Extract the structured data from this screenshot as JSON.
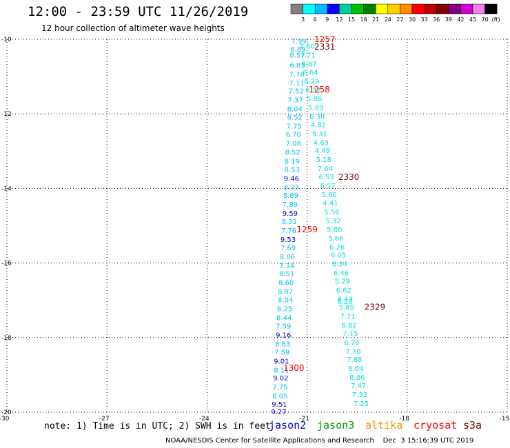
{
  "header": {
    "title": "12:00 - 23:59 UTC 11/26/2019",
    "subtitle": "12 hour collection of altimeter wave heights"
  },
  "colorbar": {
    "unit": "(ft)",
    "labels": [
      "3",
      "6",
      "9",
      "12",
      "15",
      "18",
      "21",
      "24",
      "27",
      "30",
      "33",
      "36",
      "39",
      "42",
      "45",
      "70"
    ],
    "colors": [
      "#808080",
      "#00ffff",
      "#00bfff",
      "#0000ff",
      "#00d0a0",
      "#00c000",
      "#008000",
      "#ffff00",
      "#ffd000",
      "#ff8c00",
      "#ff0000",
      "#c00000",
      "#800000",
      "#800080",
      "#d000d0",
      "#ee82ee",
      "#000000"
    ]
  },
  "footer": {
    "note": "note: 1) Time is in UTC; 2) SWH is in feet",
    "credit": "NOAA/NESDIS Center for Satellite Applications and Research    Dec  3 15:16:39 UTC 2019"
  },
  "legend": [
    {
      "name": "jason2",
      "color": "#0000cc"
    },
    {
      "name": "jason3",
      "color": "#009900"
    },
    {
      "name": "altika",
      "color": "#ff8c00"
    },
    {
      "name": "cryosat",
      "color": "#ff0000"
    },
    {
      "name": "s3a",
      "color": "#800000"
    }
  ],
  "chart_data": {
    "type": "scatter",
    "xlabel": "",
    "ylabel": "",
    "xlim": [
      -30,
      -15
    ],
    "ylim": [
      -20,
      -10
    ],
    "xticks": [
      -30,
      -27,
      -24,
      -21,
      -18,
      -15
    ],
    "yticks": [
      -10,
      -12,
      -14,
      -16,
      -18,
      -20
    ],
    "grid": true,
    "series": [
      {
        "name": "jason2",
        "color": "#00bfff",
        "points": [
          {
            "x": -21.25,
            "y": -10.04,
            "label": "7.99"
          },
          {
            "x": -21.27,
            "y": -10.26,
            "label": "8.89"
          },
          {
            "x": -21.29,
            "y": -10.42,
            "label": "8.57"
          },
          {
            "x": -21.29,
            "y": -10.68,
            "label": "6.83"
          },
          {
            "x": -21.31,
            "y": -10.92,
            "label": "7.76"
          },
          {
            "x": -21.31,
            "y": -11.16,
            "label": "7.11"
          },
          {
            "x": -21.33,
            "y": -11.38,
            "label": "7.52"
          },
          {
            "x": -21.35,
            "y": -11.62,
            "label": "7.37"
          },
          {
            "x": -21.37,
            "y": -11.86,
            "label": "8.04"
          },
          {
            "x": -21.37,
            "y": -12.08,
            "label": "8.52"
          },
          {
            "x": -21.39,
            "y": -12.32,
            "label": "7.75"
          },
          {
            "x": -21.41,
            "y": -12.54,
            "label": "6.70"
          },
          {
            "x": -21.41,
            "y": -12.78,
            "label": "7.08"
          },
          {
            "x": -21.43,
            "y": -13.02,
            "label": "8.52"
          },
          {
            "x": -21.45,
            "y": -13.26,
            "label": "8.19"
          },
          {
            "x": -21.45,
            "y": -13.48,
            "label": "8.53"
          },
          {
            "x": -21.47,
            "y": -13.72,
            "label": "9.46",
            "color": "#0000cc"
          },
          {
            "x": -21.47,
            "y": -13.96,
            "label": "8.73"
          },
          {
            "x": -21.49,
            "y": -14.18,
            "label": "8.89"
          },
          {
            "x": -21.51,
            "y": -14.42,
            "label": "7.89"
          },
          {
            "x": -21.51,
            "y": -14.66,
            "label": "9.59",
            "color": "#0000cc"
          },
          {
            "x": -21.53,
            "y": -14.88,
            "label": "8.31"
          },
          {
            "x": -21.55,
            "y": -15.12,
            "label": "7.76"
          },
          {
            "x": -21.57,
            "y": -15.36,
            "label": "9.53",
            "color": "#0000cc"
          },
          {
            "x": -21.57,
            "y": -15.58,
            "label": "7.69"
          },
          {
            "x": -21.59,
            "y": -15.82,
            "label": "8.00"
          },
          {
            "x": -21.61,
            "y": -16.06,
            "label": "7.34"
          },
          {
            "x": -21.61,
            "y": -16.28,
            "label": "8.51"
          },
          {
            "x": -21.63,
            "y": -16.52,
            "label": "8.60"
          },
          {
            "x": -21.65,
            "y": -16.76,
            "label": "8.97"
          },
          {
            "x": -21.65,
            "y": -16.98,
            "label": "8.04"
          },
          {
            "x": -21.67,
            "y": -17.22,
            "label": "8.25"
          },
          {
            "x": -21.69,
            "y": -17.46,
            "label": "8.44"
          },
          {
            "x": -21.71,
            "y": -17.68,
            "label": "7.59"
          },
          {
            "x": -21.71,
            "y": -17.92,
            "label": "9.16",
            "color": "#0000cc"
          },
          {
            "x": -21.73,
            "y": -18.16,
            "label": "8.83"
          },
          {
            "x": -21.75,
            "y": -18.38,
            "label": "7.59"
          },
          {
            "x": -21.77,
            "y": -18.62,
            "label": "9.01",
            "color": "#0000cc"
          },
          {
            "x": -21.77,
            "y": -18.86,
            "label": "8.11"
          },
          {
            "x": -21.79,
            "y": -19.08,
            "label": "9.02",
            "color": "#0000cc"
          },
          {
            "x": -21.81,
            "y": -19.32,
            "label": "7.75"
          },
          {
            "x": -21.81,
            "y": -19.56,
            "label": "8.05"
          },
          {
            "x": -21.83,
            "y": -19.78,
            "label": "9.51",
            "color": "#0000cc"
          },
          {
            "x": -21.85,
            "y": -19.98,
            "label": "9.27",
            "color": "#0000cc"
          }
        ]
      },
      {
        "name": "jason3",
        "color": "#00dddd",
        "points": [
          {
            "x": -21.0,
            "y": -10.18,
            "label": "7.60"
          },
          {
            "x": -20.98,
            "y": -10.42,
            "label": "7.71"
          },
          {
            "x": -20.94,
            "y": -10.66,
            "label": "6.87"
          },
          {
            "x": -20.9,
            "y": -10.88,
            "label": "6.64"
          },
          {
            "x": -20.86,
            "y": -11.12,
            "label": "6.29"
          },
          {
            "x": -20.82,
            "y": -11.36,
            "label": "6.32"
          },
          {
            "x": -20.78,
            "y": -11.58,
            "label": "5.86"
          },
          {
            "x": -20.74,
            "y": -11.82,
            "label": "5.89"
          },
          {
            "x": -20.7,
            "y": -12.06,
            "label": "6.38"
          },
          {
            "x": -20.66,
            "y": -12.28,
            "label": "4.82"
          },
          {
            "x": -20.62,
            "y": -12.52,
            "label": "5.31"
          },
          {
            "x": -20.58,
            "y": -12.76,
            "label": "4.63"
          },
          {
            "x": -20.54,
            "y": -12.98,
            "label": "4.49"
          },
          {
            "x": -20.5,
            "y": -13.22,
            "label": "5.18"
          },
          {
            "x": -20.46,
            "y": -13.46,
            "label": "7.64"
          },
          {
            "x": -20.42,
            "y": -13.68,
            "label": "6.53"
          },
          {
            "x": -20.38,
            "y": -13.92,
            "label": "6.17"
          },
          {
            "x": -20.34,
            "y": -14.16,
            "label": "5.60"
          },
          {
            "x": -20.3,
            "y": -14.38,
            "label": "4.41"
          },
          {
            "x": -20.26,
            "y": -14.62,
            "label": "5.56"
          },
          {
            "x": -20.22,
            "y": -14.86,
            "label": "5.32"
          },
          {
            "x": -20.18,
            "y": -15.08,
            "label": "5.86"
          },
          {
            "x": -20.14,
            "y": -15.32,
            "label": "5.66"
          },
          {
            "x": -20.1,
            "y": -15.56,
            "label": "6.26"
          },
          {
            "x": -20.06,
            "y": -15.78,
            "label": "6.05"
          },
          {
            "x": -20.02,
            "y": -16.02,
            "label": "6.34"
          },
          {
            "x": -19.98,
            "y": -16.26,
            "label": "6.46"
          },
          {
            "x": -19.94,
            "y": -16.48,
            "label": "5.29"
          },
          {
            "x": -19.9,
            "y": -16.72,
            "label": "6.62"
          },
          {
            "x": -19.86,
            "y": -16.96,
            "label": "6.43"
          },
          {
            "x": -19.86,
            "y": -17.02,
            "label": "6.20"
          },
          {
            "x": -19.82,
            "y": -17.18,
            "label": "5.85"
          },
          {
            "x": -19.78,
            "y": -17.42,
            "label": "7.71"
          },
          {
            "x": -19.74,
            "y": -17.66,
            "label": "6.82"
          },
          {
            "x": -19.7,
            "y": -17.88,
            "label": "7.15"
          },
          {
            "x": -19.66,
            "y": -18.12,
            "label": "6.70"
          },
          {
            "x": -19.62,
            "y": -18.36,
            "label": "7.70"
          },
          {
            "x": -19.58,
            "y": -18.58,
            "label": "7.88"
          },
          {
            "x": -19.54,
            "y": -18.82,
            "label": "8.64"
          },
          {
            "x": -19.5,
            "y": -19.06,
            "label": "8.86"
          },
          {
            "x": -19.46,
            "y": -19.28,
            "label": "7.47"
          },
          {
            "x": -19.42,
            "y": -19.52,
            "label": "7.33"
          },
          {
            "x": -19.38,
            "y": -19.76,
            "label": "7.25"
          }
        ]
      },
      {
        "name": "time-labels",
        "points": [
          {
            "x": -20.47,
            "y": -10.0,
            "label": "1257",
            "color": "#ff0000"
          },
          {
            "x": -20.47,
            "y": -10.2,
            "label": "2331",
            "color": "#800000"
          },
          {
            "x": -20.63,
            "y": -11.35,
            "label": "1258",
            "color": "#ff0000"
          },
          {
            "x": -19.75,
            "y": -13.7,
            "label": "2330",
            "color": "#800000"
          },
          {
            "x": -21.0,
            "y": -15.1,
            "label": "1259",
            "color": "#ff0000"
          },
          {
            "x": -18.97,
            "y": -17.18,
            "label": "2329",
            "color": "#800000"
          },
          {
            "x": -21.4,
            "y": -18.82,
            "label": "1300",
            "color": "#ff0000"
          }
        ]
      }
    ]
  }
}
